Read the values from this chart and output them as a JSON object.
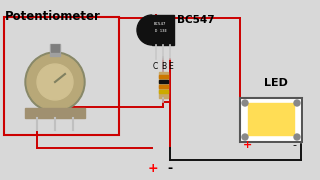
{
  "bg_color": "#d8d8d8",
  "title_text": "Potentiometer",
  "bc547_label": "BC547",
  "led_label": "LED",
  "plus_bottom": "+",
  "minus_bottom": "-",
  "plus_led": "+",
  "minus_led": "-",
  "wire_red": "#cc0000",
  "wire_black": "#111111",
  "pot_box_color": "#cc0000",
  "transistor_color": "#111111",
  "resistor_body": "#c8a868",
  "led_pcb_color": "#ffffff",
  "led_glow_color": "#ffdd55",
  "pot_outer_color": "#b8a878",
  "pot_inner_color": "#d0c090",
  "pot_shaft_color": "#909090",
  "pot_ridge_color": "#707070"
}
